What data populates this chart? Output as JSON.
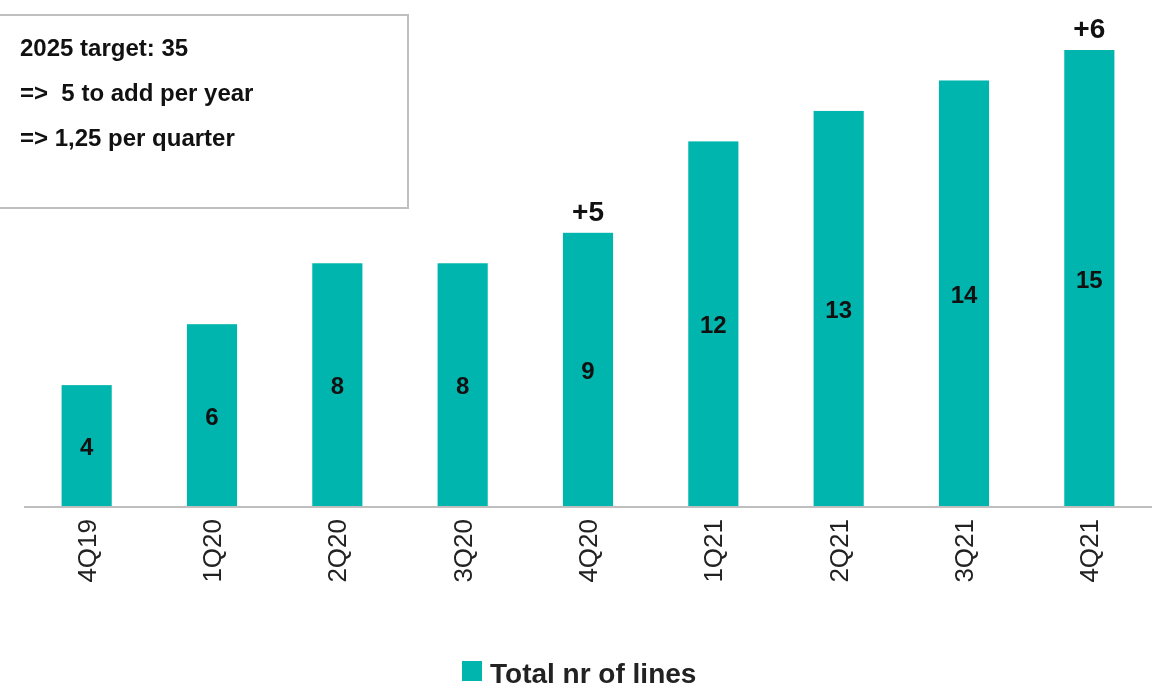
{
  "chart_data": {
    "type": "bar",
    "categories": [
      "4Q19",
      "1Q20",
      "2Q20",
      "3Q20",
      "4Q20",
      "1Q21",
      "2Q21",
      "3Q21",
      "4Q21"
    ],
    "series": [
      {
        "name": "Total nr of lines",
        "color": "#00b5ad",
        "values": [
          4,
          6,
          8,
          8,
          9,
          12,
          13,
          14,
          15
        ]
      }
    ],
    "data_labels": true,
    "legend": "bottom",
    "annotations": [
      "2025 target: 35",
      "=>  5 to add per year",
      "=> 1,25 per quarter",
      {
        "text": "+5",
        "x": "4Q20",
        "y": 9
      },
      {
        "text": "+6",
        "x": "4Q21",
        "y": 15
      }
    ]
  }
}
